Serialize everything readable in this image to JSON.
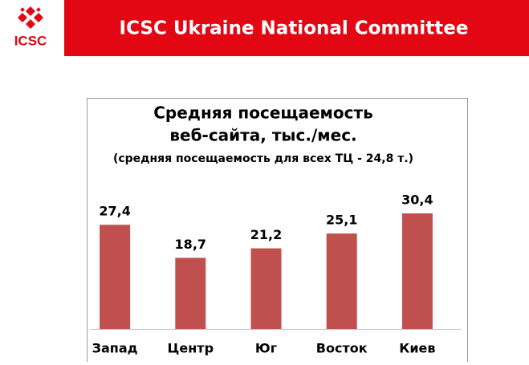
{
  "header": {
    "title": "ICSC Ukraine National Committee",
    "logo": "ICSC"
  },
  "chart_data": {
    "type": "bar",
    "title": [
      "Средняя посещаемость",
      "веб-сайта, тыс./мес."
    ],
    "subtitle": "(средняя посещаемость для всех ТЦ - 24,8 т.)",
    "categories": [
      "Запад",
      "Центр",
      "Юг",
      "Восток",
      "Киев"
    ],
    "values": [
      27.4,
      18.7,
      21.2,
      25.1,
      30.4
    ],
    "value_labels": [
      "27,4",
      "18,7",
      "21,2",
      "25,1",
      "30,4"
    ],
    "color": "#c0504d"
  }
}
